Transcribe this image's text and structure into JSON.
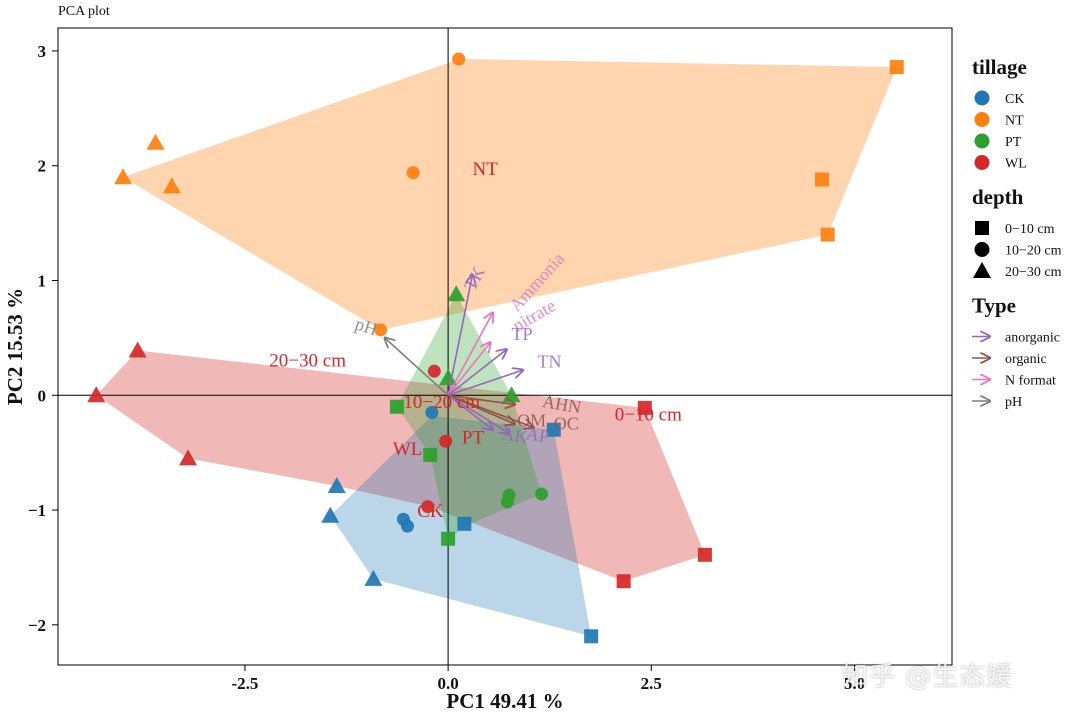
{
  "page_label": "PCA plot",
  "watermark": "知乎 @生态媛",
  "colors": {
    "CK": "#1f77b4",
    "NT": "#ff7f0e",
    "PT": "#2ca02c",
    "WL": "#d62728",
    "anorganic": "#9467bd",
    "organic": "#8c564b",
    "N format": "#e377c2",
    "pH": "#7f7f7f"
  },
  "chart_data": {
    "type": "scatter",
    "xlabel": "PC1 49.41  %",
    "ylabel": "PC2 15.53  %",
    "xlim": [
      -4.8,
      6.2
    ],
    "ylim": [
      -2.35,
      3.2
    ],
    "xticks": [
      -2.5,
      0.0,
      2.5,
      5.0
    ],
    "yticks": [
      -2,
      -1,
      0,
      1,
      2,
      3
    ],
    "grid": false,
    "zero_lines": true,
    "legend_placement": "right",
    "legend": [
      {
        "title": "tillage",
        "entries": [
          {
            "label": "CK",
            "marker": "circle",
            "color": "#1f77b4"
          },
          {
            "label": "NT",
            "marker": "circle",
            "color": "#ff7f0e"
          },
          {
            "label": "PT",
            "marker": "circle",
            "color": "#2ca02c"
          },
          {
            "label": "WL",
            "marker": "circle",
            "color": "#d62728"
          }
        ]
      },
      {
        "title": "depth",
        "entries": [
          {
            "label": "0−10 cm",
            "marker": "square",
            "color": "#000000"
          },
          {
            "label": "10−20 cm",
            "marker": "circle",
            "color": "#000000"
          },
          {
            "label": "20−30 cm",
            "marker": "triangle",
            "color": "#000000"
          }
        ]
      },
      {
        "title": "Type",
        "entries": [
          {
            "label": "anorganic",
            "marker": "arrow",
            "color": "#9467bd"
          },
          {
            "label": "organic",
            "marker": "arrow",
            "color": "#8c564b"
          },
          {
            "label": "N format",
            "marker": "arrow",
            "color": "#e377c2"
          },
          {
            "label": "pH",
            "marker": "arrow",
            "color": "#7f7f7f"
          }
        ]
      }
    ],
    "hulls": [
      {
        "group": "NT",
        "fill": "#ff7f0e",
        "opacity": 0.33,
        "points": [
          [
            -4.0,
            1.9
          ],
          [
            0.14,
            2.93
          ],
          [
            5.52,
            2.86
          ],
          [
            4.67,
            1.4
          ],
          [
            -0.83,
            0.57
          ]
        ]
      },
      {
        "group": "WL",
        "fill": "#d62728",
        "opacity": 0.33,
        "points": [
          [
            -4.33,
            0.0
          ],
          [
            -3.82,
            0.39
          ],
          [
            2.42,
            -0.11
          ],
          [
            3.16,
            -1.39
          ],
          [
            2.16,
            -1.62
          ],
          [
            -0.22,
            -0.97
          ],
          [
            -1.37,
            -0.79
          ],
          [
            -3.2,
            -0.55
          ]
        ]
      },
      {
        "group": "CK",
        "fill": "#1f77b4",
        "opacity": 0.3,
        "points": [
          [
            -1.45,
            -1.05
          ],
          [
            -0.2,
            -0.18
          ],
          [
            1.3,
            -0.3
          ],
          [
            1.76,
            -2.1
          ],
          [
            -0.92,
            -1.6
          ]
        ]
      },
      {
        "group": "PT",
        "fill": "#2ca02c",
        "opacity": 0.3,
        "points": [
          [
            0.1,
            0.88
          ],
          [
            0.78,
            0.0
          ],
          [
            1.15,
            -0.86
          ],
          [
            0.27,
            -1.12
          ],
          [
            0.0,
            -1.25
          ],
          [
            -0.22,
            -0.52
          ],
          [
            -0.63,
            -0.1
          ]
        ]
      }
    ],
    "points": [
      {
        "tillage": "NT",
        "depth": "10−20 cm",
        "x": 0.13,
        "y": 2.93
      },
      {
        "tillage": "NT",
        "depth": "10−20 cm",
        "x": -0.43,
        "y": 1.94
      },
      {
        "tillage": "NT",
        "depth": "10−20 cm",
        "x": -0.83,
        "y": 0.57
      },
      {
        "tillage": "NT",
        "depth": "0−10 cm",
        "x": 5.52,
        "y": 2.86
      },
      {
        "tillage": "NT",
        "depth": "0−10 cm",
        "x": 4.6,
        "y": 1.88
      },
      {
        "tillage": "NT",
        "depth": "0−10 cm",
        "x": 4.67,
        "y": 1.4
      },
      {
        "tillage": "NT",
        "depth": "20−30 cm",
        "x": -3.6,
        "y": 2.2
      },
      {
        "tillage": "NT",
        "depth": "20−30 cm",
        "x": -4.0,
        "y": 1.9
      },
      {
        "tillage": "NT",
        "depth": "20−30 cm",
        "x": -3.4,
        "y": 1.82
      },
      {
        "tillage": "WL",
        "depth": "20−30 cm",
        "x": -3.82,
        "y": 0.39
      },
      {
        "tillage": "WL",
        "depth": "20−30 cm",
        "x": -4.33,
        "y": 0.0
      },
      {
        "tillage": "WL",
        "depth": "20−30 cm",
        "x": -3.2,
        "y": -0.55
      },
      {
        "tillage": "WL",
        "depth": "0−10 cm",
        "x": 2.42,
        "y": -0.11
      },
      {
        "tillage": "WL",
        "depth": "0−10 cm",
        "x": 3.16,
        "y": -1.39
      },
      {
        "tillage": "WL",
        "depth": "0−10 cm",
        "x": 2.16,
        "y": -1.62
      },
      {
        "tillage": "WL",
        "depth": "10−20 cm",
        "x": -0.17,
        "y": 0.21
      },
      {
        "tillage": "WL",
        "depth": "10−20 cm",
        "x": -0.03,
        "y": -0.4
      },
      {
        "tillage": "WL",
        "depth": "10−20 cm",
        "x": -0.25,
        "y": -0.97
      },
      {
        "tillage": "CK",
        "depth": "0−10 cm",
        "x": 1.76,
        "y": -2.1
      },
      {
        "tillage": "CK",
        "depth": "0−10 cm",
        "x": 1.3,
        "y": -0.3
      },
      {
        "tillage": "CK",
        "depth": "0−10 cm",
        "x": 0.2,
        "y": -1.12
      },
      {
        "tillage": "CK",
        "depth": "10−20 cm",
        "x": -0.55,
        "y": -1.08
      },
      {
        "tillage": "CK",
        "depth": "10−20 cm",
        "x": -0.5,
        "y": -1.14
      },
      {
        "tillage": "CK",
        "depth": "10−20 cm",
        "x": -0.2,
        "y": -0.15
      },
      {
        "tillage": "CK",
        "depth": "20−30 cm",
        "x": -1.45,
        "y": -1.05
      },
      {
        "tillage": "CK",
        "depth": "20−30 cm",
        "x": -0.92,
        "y": -1.6
      },
      {
        "tillage": "CK",
        "depth": "20−30 cm",
        "x": -1.37,
        "y": -0.79
      },
      {
        "tillage": "PT",
        "depth": "20−30 cm",
        "x": 0.1,
        "y": 0.88
      },
      {
        "tillage": "PT",
        "depth": "20−30 cm",
        "x": 0.0,
        "y": 0.15
      },
      {
        "tillage": "PT",
        "depth": "20−30 cm",
        "x": 0.78,
        "y": 0.0
      },
      {
        "tillage": "PT",
        "depth": "0−10 cm",
        "x": -0.63,
        "y": -0.1
      },
      {
        "tillage": "PT",
        "depth": "0−10 cm",
        "x": -0.22,
        "y": -0.52
      },
      {
        "tillage": "PT",
        "depth": "0−10 cm",
        "x": 0.0,
        "y": -1.25
      },
      {
        "tillage": "PT",
        "depth": "10−20 cm",
        "x": 0.75,
        "y": -0.87
      },
      {
        "tillage": "PT",
        "depth": "10−20 cm",
        "x": 0.73,
        "y": -0.93
      },
      {
        "tillage": "PT",
        "depth": "10−20 cm",
        "x": 1.15,
        "y": -0.86
      }
    ],
    "vectors": [
      {
        "label": "TK",
        "type": "anorganic",
        "x": 0.3,
        "y": 1.05,
        "lx": 0.32,
        "ly": 0.9,
        "rot": -62
      },
      {
        "label": "Ammonia",
        "type": "N format",
        "x": 0.55,
        "y": 0.72,
        "lx": 0.85,
        "ly": 0.72,
        "rot": -48
      },
      {
        "label": "nitrate",
        "type": "N format",
        "x": 0.52,
        "y": 0.46,
        "lx": 0.85,
        "ly": 0.55,
        "rot": -30
      },
      {
        "label": "TP",
        "type": "anorganic",
        "x": 0.72,
        "y": 0.4,
        "lx": 0.78,
        "ly": 0.48,
        "rot": 0
      },
      {
        "label": "TN",
        "type": "anorganic",
        "x": 0.92,
        "y": 0.22,
        "lx": 1.1,
        "ly": 0.24,
        "rot": 0
      },
      {
        "label": "pH",
        "type": "pH",
        "x": -0.78,
        "y": 0.5,
        "lx": -0.9,
        "ly": 0.52,
        "rot": 18
      },
      {
        "label": "AHN",
        "type": "organic",
        "x": 0.82,
        "y": -0.08,
        "lx": 1.15,
        "ly": -0.1,
        "rot": 10
      },
      {
        "label": "OM",
        "type": "organic",
        "x": 0.82,
        "y": -0.25,
        "lx": 0.85,
        "ly": -0.27,
        "rot": 0
      },
      {
        "label": "OC",
        "type": "organic",
        "x": 1.05,
        "y": -0.28,
        "lx": 1.3,
        "ly": -0.3,
        "rot": 0
      },
      {
        "label": "AK",
        "type": "anorganic",
        "x": 0.55,
        "y": -0.3,
        "lx": 0.65,
        "ly": -0.38,
        "rot": 10
      },
      {
        "label": "AP",
        "type": "anorganic",
        "x": 0.75,
        "y": -0.33,
        "lx": 0.95,
        "ly": -0.38,
        "rot": 10
      }
    ],
    "annotations": [
      {
        "text": "NT",
        "x": 0.3,
        "y": 1.92,
        "color": "#d62728"
      },
      {
        "text": "20−30 cm",
        "x": -2.2,
        "y": 0.25,
        "color": "#d62728"
      },
      {
        "text": "10−20 cm",
        "x": -0.55,
        "y": -0.11,
        "color": "#d62728"
      },
      {
        "text": "0−10 cm",
        "x": 2.05,
        "y": -0.22,
        "color": "#d62728"
      },
      {
        "text": "WL",
        "x": -0.68,
        "y": -0.52,
        "color": "#d62728"
      },
      {
        "text": "PT",
        "x": 0.17,
        "y": -0.42,
        "color": "#d62728"
      },
      {
        "text": "CK",
        "x": -0.38,
        "y": -1.06,
        "color": "#d62728"
      }
    ]
  }
}
